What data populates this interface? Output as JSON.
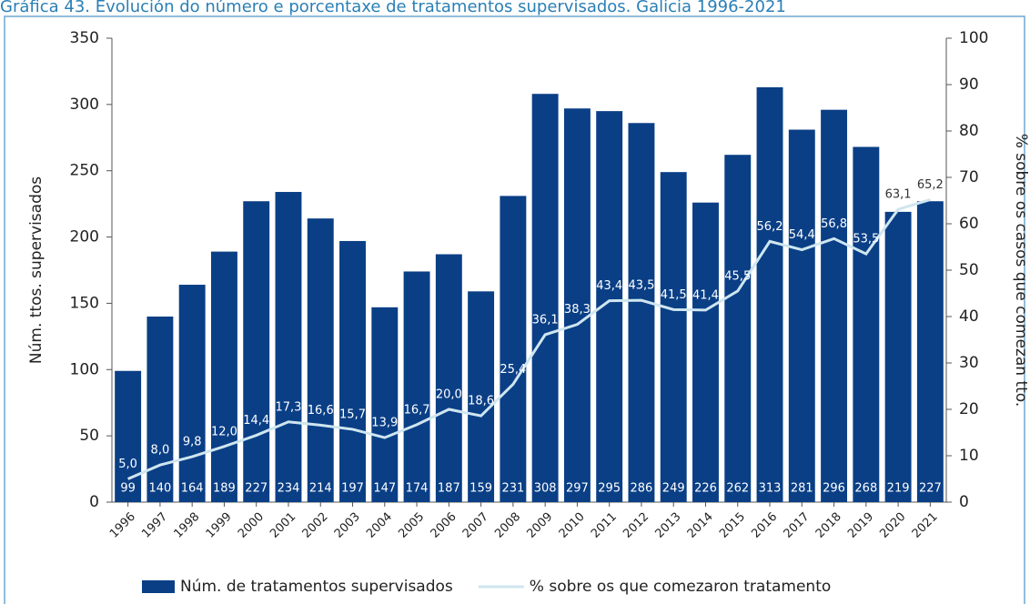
{
  "chart_data": {
    "type": "bar",
    "title": "Gráfica 43. Evolución do número e porcentaxe de tratamentos supervisados. Galicia 1996-2021",
    "y_label": "Núm. ttos. supervisados",
    "y2_label": "% sobre os casos que comezan tto.",
    "categories": [
      "1996",
      "1997",
      "1998",
      "1999",
      "2000",
      "2001",
      "2002",
      "2003",
      "2004",
      "2005",
      "2006",
      "2007",
      "2008",
      "2009",
      "2010",
      "2011",
      "2012",
      "2013",
      "2014",
      "2015",
      "2016",
      "2017",
      "2018",
      "2019",
      "2020",
      "2021"
    ],
    "series": [
      {
        "name": "Núm. de tratamentos supervisados",
        "type": "bar",
        "color": "#0a3f86",
        "values": [
          99,
          140,
          164,
          189,
          227,
          234,
          214,
          197,
          147,
          174,
          187,
          159,
          231,
          308,
          297,
          295,
          286,
          249,
          226,
          262,
          313,
          281,
          296,
          268,
          219,
          227
        ]
      },
      {
        "name": "% sobre os que comezaron tratamento",
        "type": "line",
        "axis": "y2",
        "color": "#cfe6f0",
        "values": [
          5.0,
          8.0,
          9.8,
          12.0,
          14.4,
          17.3,
          16.6,
          15.7,
          13.9,
          16.7,
          20.0,
          18.6,
          25.4,
          36.1,
          38.3,
          43.4,
          43.5,
          41.5,
          41.4,
          45.5,
          56.2,
          54.4,
          56.8,
          53.5,
          63.1,
          65.2
        ],
        "value_labels": [
          "5,0",
          "8,0",
          "9,8",
          "12,0",
          "14,4",
          "17,3",
          "16,6",
          "15,7",
          "13,9",
          "16,7",
          "20,0",
          "18,6",
          "25,4",
          "36,1",
          "38,3",
          "43,4",
          "43,5",
          "41,5",
          "41,4",
          "45,5",
          "56,2",
          "54,4",
          "56,8",
          "53,5",
          "63,1",
          "65,2"
        ]
      }
    ],
    "ylim": [
      0,
      350
    ],
    "yticks": [
      0,
      50,
      100,
      150,
      200,
      250,
      300,
      350
    ],
    "y2lim": [
      0,
      100
    ],
    "y2ticks": [
      0,
      10,
      20,
      30,
      40,
      50,
      60,
      70,
      80,
      90,
      100
    ],
    "grid": false,
    "legend": "bottom"
  }
}
